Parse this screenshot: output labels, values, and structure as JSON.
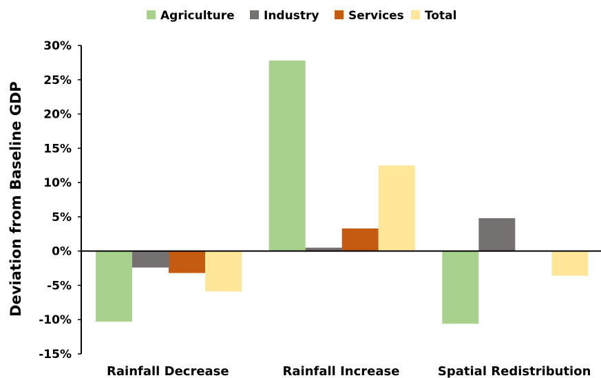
{
  "chart_data": {
    "type": "bar",
    "title": "",
    "xlabel": "",
    "ylabel": "Deviation from Baseline GDP",
    "categories": [
      "Rainfall Decrease",
      "Rainfall Increase",
      "Spatial Redistribution"
    ],
    "series": [
      {
        "name": "Agriculture",
        "color": "#a9d18e",
        "values": [
          -10.3,
          27.8,
          -10.6
        ]
      },
      {
        "name": "Industry",
        "color": "#767171",
        "values": [
          -2.4,
          0.5,
          4.8
        ]
      },
      {
        "name": "Services",
        "color": "#c55a11",
        "values": [
          -3.2,
          3.3,
          0.0
        ]
      },
      {
        "name": "Total",
        "color": "#ffe699",
        "values": [
          -5.9,
          12.5,
          -3.6
        ]
      }
    ],
    "ylim": [
      -15,
      30
    ],
    "yticks": [
      "30%",
      "25%",
      "20%",
      "15%",
      "10%",
      "5%",
      "0%",
      "-5%",
      "-10%",
      "-15%"
    ],
    "grid": false,
    "legend_position": "top"
  }
}
